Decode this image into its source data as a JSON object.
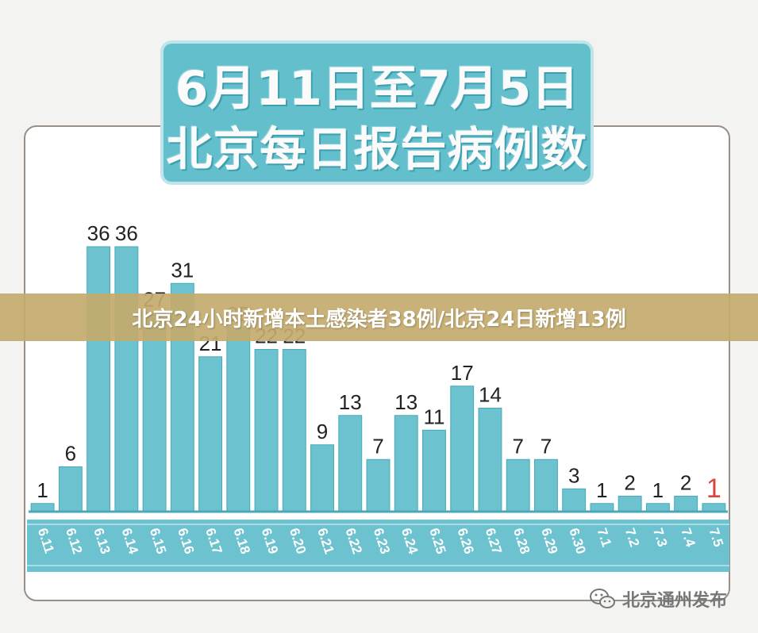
{
  "title": {
    "line1": "6月11日至7月5日",
    "line2": "北京每日报告病例数"
  },
  "banner": "北京24小时新增本土感染者38例/北京24日新增13例",
  "watermark": {
    "icon": "wechat-icon",
    "text": "北京通州发布"
  },
  "colors": {
    "bar": "#6cc2cf",
    "bar_edge": "#4aa9b8",
    "axis_band": "#6cc2cf",
    "highlight": "#d7463f"
  },
  "chart_data": {
    "type": "bar",
    "title": "北京每日报告病例数",
    "categories": [
      "6.11",
      "6.12",
      "6.13",
      "6.14",
      "6.15",
      "6.16",
      "6.17",
      "6.18",
      "6.19",
      "6.20",
      "6.21",
      "6.22",
      "6.23",
      "6.24",
      "6.25",
      "6.26",
      "6.27",
      "6.28",
      "6.29",
      "6.30",
      "7.1",
      "7.2",
      "7.3",
      "7.4",
      "7.5"
    ],
    "values": [
      1,
      6,
      36,
      36,
      27,
      31,
      21,
      25,
      22,
      22,
      9,
      13,
      7,
      13,
      11,
      17,
      14,
      7,
      7,
      3,
      1,
      2,
      1,
      2,
      1
    ],
    "data_labels": [
      "1",
      "6",
      "36",
      "36",
      "27",
      "31",
      "21",
      "25",
      "22",
      "22",
      "9",
      "13",
      "7",
      "13",
      "11",
      "17",
      "14",
      "7",
      "7",
      "3",
      "1",
      "2",
      "1",
      "2",
      "1"
    ],
    "highlight_index": 24,
    "ylim": [
      0,
      36
    ],
    "grid": false,
    "xlabel": "",
    "ylabel": ""
  }
}
